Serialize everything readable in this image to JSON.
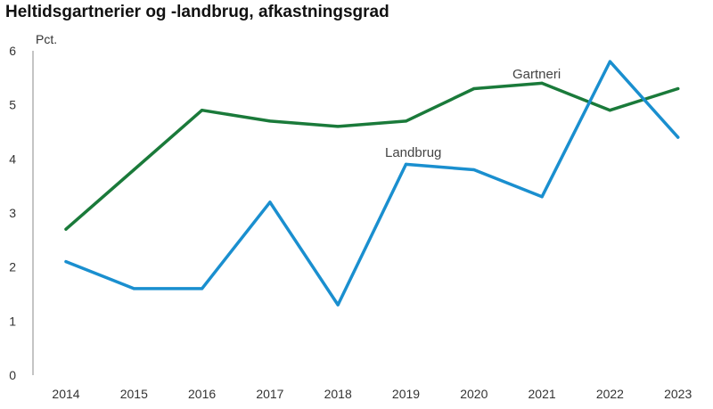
{
  "chart_data": {
    "type": "line",
    "title": "Heltidsgartnerier og -landbrug, afkastningsgrad",
    "ylabel": "Pct.",
    "xlabel": "",
    "x": [
      "2014",
      "2015",
      "2016",
      "2017",
      "2018",
      "2019",
      "2020",
      "2021",
      "2022",
      "2023"
    ],
    "ylim": [
      0,
      6
    ],
    "yticks": [
      0,
      1,
      2,
      3,
      4,
      5,
      6
    ],
    "grid": false,
    "series": [
      {
        "name": "Gartneri",
        "color": "#1a7a3a",
        "values": [
          2.7,
          3.8,
          4.9,
          4.7,
          4.6,
          4.7,
          5.3,
          5.4,
          4.9,
          5.3
        ]
      },
      {
        "name": "Landbrug",
        "color": "#1a8fcf",
        "values": [
          2.1,
          1.6,
          1.6,
          3.2,
          1.3,
          3.9,
          3.8,
          3.3,
          5.8,
          4.4
        ]
      }
    ]
  }
}
